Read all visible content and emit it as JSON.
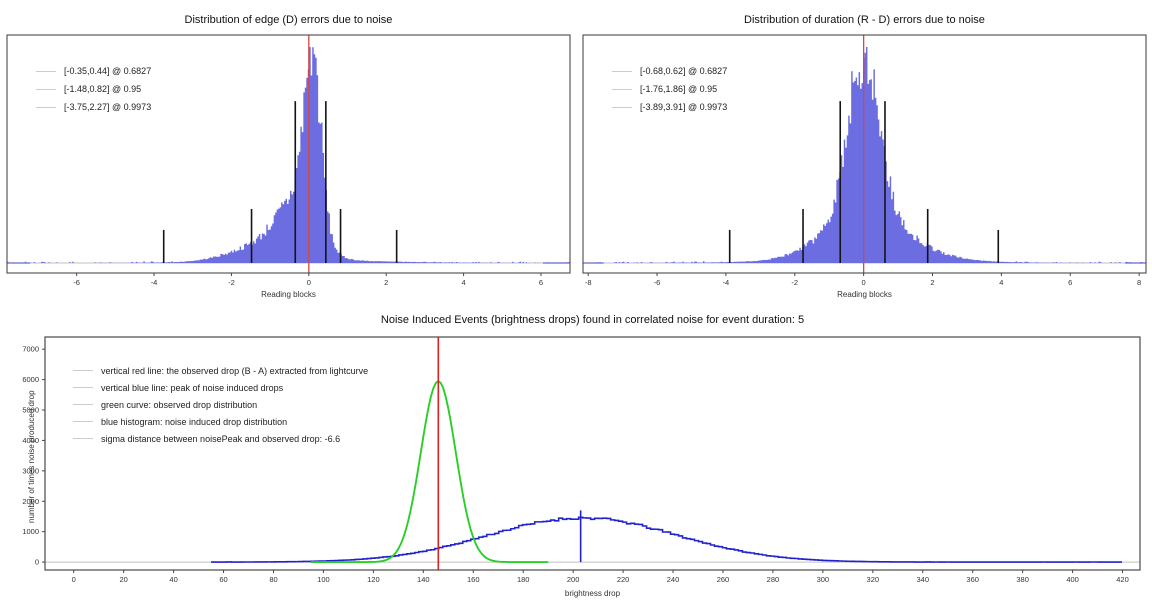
{
  "figure": {
    "background": "#ffffff",
    "spine_color": "#4a4a4a",
    "baseline_color": "#c0c0c0",
    "tick_color": "#444444",
    "legend_handle_color": "#cccccc"
  },
  "chart_data": [
    {
      "id": "edge-error-distribution",
      "type": "histogram",
      "title": "Distribution of edge (D) errors due to noise",
      "xlabel": "Reading blocks",
      "x_range": [
        -7.8,
        6.75
      ],
      "x_ticks": [
        -6,
        -4,
        -2,
        0,
        2,
        4,
        6
      ],
      "grid": false,
      "legend_position": "upper-left",
      "legend": [
        {
          "label": "[-0.35,0.44] @ 0.6827"
        },
        {
          "label": "[-1.48,0.82] @ 0.95"
        },
        {
          "label": "[-3.75,2.27] @ 0.9973"
        }
      ],
      "red_vline_x": 0,
      "confidence_intervals": [
        {
          "low": -0.35,
          "high": 0.44,
          "coverage": 0.6827,
          "bar_height_frac": 0.71
        },
        {
          "low": -1.48,
          "high": 0.82,
          "coverage": 0.95,
          "bar_height_frac": 0.237
        },
        {
          "low": -3.75,
          "high": 2.27,
          "coverage": 0.9973,
          "bar_height_frac": 0.145
        }
      ],
      "hist": {
        "bins": 380,
        "seed": 7,
        "noise": 0.16,
        "peak_frac": 0.935,
        "components": [
          {
            "mu": 0.1,
            "sigma": 0.22,
            "w": 1.0
          },
          {
            "mu": -0.3,
            "sigma": 0.5,
            "w": 0.3
          },
          {
            "mu": -1.1,
            "sigma": 0.85,
            "w": 0.1
          },
          {
            "mu": 0.0,
            "sigma": 2.0,
            "w": 0.015
          }
        ],
        "edge_segments": [
          [
            -7.8,
            -7.2
          ],
          [
            6.05,
            6.75
          ]
        ]
      },
      "colors": {
        "hist_fill": "#6d6de2",
        "red_line": "#d9453f",
        "interval_line": "#141414"
      }
    },
    {
      "id": "duration-error-distribution",
      "type": "histogram",
      "title": "Distribution of duration (R - D) errors due to noise",
      "xlabel": "Reading blocks",
      "x_range": [
        -8.15,
        8.2
      ],
      "x_ticks": [
        -8,
        -6,
        -4,
        -2,
        0,
        2,
        4,
        6,
        8
      ],
      "grid": false,
      "legend_position": "upper-left",
      "legend": [
        {
          "label": "[-0.68,0.62] @ 0.6827"
        },
        {
          "label": "[-1.76,1.86] @ 0.95"
        },
        {
          "label": "[-3.89,3.91] @ 0.9973"
        }
      ],
      "red_vline_x": 0,
      "confidence_intervals": [
        {
          "low": -0.68,
          "high": 0.62,
          "coverage": 0.6827,
          "bar_height_frac": 0.71
        },
        {
          "low": -1.76,
          "high": 1.86,
          "coverage": 0.95,
          "bar_height_frac": 0.237
        },
        {
          "low": -3.89,
          "high": 3.91,
          "coverage": 0.9973,
          "bar_height_frac": 0.145
        }
      ],
      "hist": {
        "bins": 380,
        "seed": 21,
        "noise": 0.16,
        "peak_frac": 0.91,
        "components": [
          {
            "mu": 0.0,
            "sigma": 0.45,
            "w": 1.0
          },
          {
            "mu": 0.0,
            "sigma": 1.1,
            "w": 0.26
          },
          {
            "mu": 0.6,
            "sigma": 1.4,
            "w": 0.05
          },
          {
            "mu": 0.0,
            "sigma": 2.4,
            "w": 0.02
          }
        ],
        "edge_segments": [
          [
            -8.15,
            -7.55
          ],
          [
            7.6,
            8.2
          ]
        ]
      },
      "colors": {
        "hist_fill": "#6d6de2",
        "red_line": "#d9453f",
        "interval_line": "#141414"
      }
    },
    {
      "id": "noise-induced-events",
      "type": "histogram",
      "title": "Noise Induced Events (brightness drops) found in correlated noise for event duration: 5",
      "xlabel": "brightness drop",
      "ylabel": "number of times noise produced drop",
      "x_range": [
        -11.5,
        427
      ],
      "y_range": [
        -260,
        7400
      ],
      "x_ticks": [
        0,
        20,
        40,
        60,
        80,
        100,
        120,
        140,
        160,
        180,
        200,
        220,
        240,
        260,
        280,
        300,
        320,
        340,
        360,
        380,
        400,
        420
      ],
      "y_ticks": [
        0,
        1000,
        2000,
        3000,
        4000,
        5000,
        6000,
        7000
      ],
      "grid": false,
      "legend_position": "upper-left",
      "legend": [
        {
          "label": "vertical red line: the observed drop (B - A) extracted from lightcurve"
        },
        {
          "label": "vertical blue line: peak of noise induced drops"
        },
        {
          "label": "green curve: observed drop distribution"
        },
        {
          "label": "blue histogram: noise induced drop distribution"
        },
        {
          "label": "sigma distance between noisePeak and observed drop: -6.6"
        }
      ],
      "sigma_distance": -6.6,
      "red_vline": {
        "x": 146
      },
      "blue_vline": {
        "x": 203,
        "top": 1700
      },
      "green_curve": {
        "mu": 146,
        "sigma": 7,
        "amp": 5950,
        "x_start": 95,
        "x_end": 190
      },
      "blue_curve": {
        "mu": 203,
        "sigma": 38,
        "amp": 1450,
        "x_start": 55,
        "x_end": 421,
        "noise": 0.03,
        "seed": 11
      },
      "colors": {
        "red_line": "#dd2222",
        "blue": "#2222cc",
        "green": "#29cf29"
      }
    }
  ]
}
